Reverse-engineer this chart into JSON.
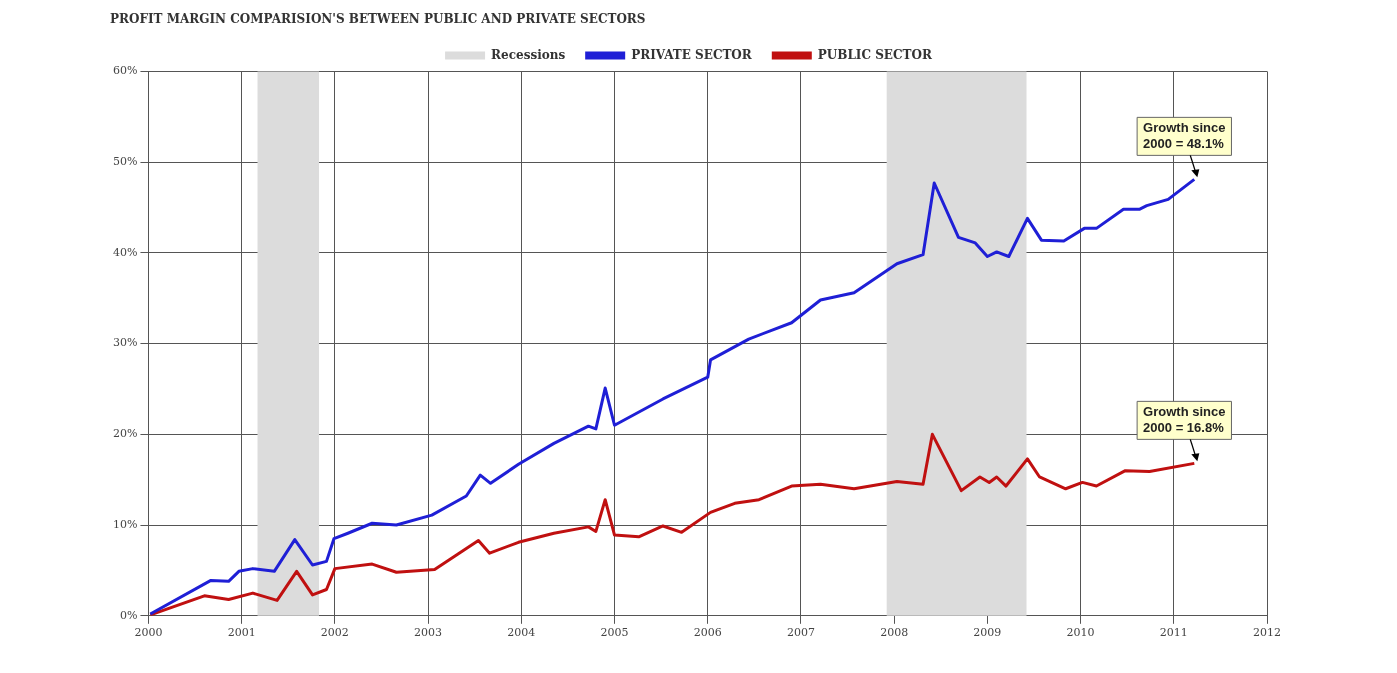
{
  "chart_data": {
    "type": "line",
    "title": "PROFIT MARGIN COMPARISION'S BETWEEN PUBLIC AND PRIVATE SECTORS",
    "series": [
      {
        "name": "PRIVATE SECTOR",
        "color": "#1f1fd6",
        "x": [
          2000.02,
          2000.67,
          2000.86,
          2000.97,
          2001.12,
          2001.35,
          2001.57,
          2001.76,
          2001.91,
          2001.99,
          2002.14,
          2002.4,
          2002.66,
          2003.04,
          2003.41,
          2003.56,
          2003.67,
          2003.97,
          2004.35,
          2004.72,
          2004.8,
          2004.9,
          2005.0,
          2005.52,
          2006.0,
          2006.03,
          2006.44,
          2006.9,
          2007.21,
          2007.57,
          2008.03,
          2008.31,
          2008.43,
          2008.69,
          2008.87,
          2009.0,
          2009.1,
          2009.23,
          2009.43,
          2009.58,
          2009.82,
          2010.04,
          2010.17,
          2010.46,
          2010.63,
          2010.71,
          2010.94,
          2011.22
        ],
        "values": [
          0.2,
          3.9,
          3.8,
          4.9,
          5.2,
          4.9,
          8.4,
          5.6,
          6.0,
          8.5,
          9.1,
          10.2,
          10.0,
          11.1,
          13.2,
          15.5,
          14.6,
          16.7,
          19.0,
          20.9,
          20.6,
          25.1,
          21.0,
          23.9,
          26.3,
          28.2,
          30.5,
          32.3,
          34.8,
          35.6,
          38.8,
          39.8,
          47.7,
          41.7,
          41.1,
          39.6,
          40.1,
          39.6,
          43.8,
          41.4,
          41.3,
          42.7,
          42.7,
          44.8,
          44.8,
          45.2,
          45.9,
          48.1
        ]
      },
      {
        "name": "PUBLIC SECTOR",
        "color": "#c01010",
        "x": [
          2000.02,
          2000.6,
          2000.86,
          2001.12,
          2001.38,
          2001.59,
          2001.76,
          2001.91,
          2002.0,
          2002.4,
          2002.66,
          2003.07,
          2003.54,
          2003.66,
          2003.97,
          2004.35,
          2004.72,
          2004.8,
          2004.9,
          2005.0,
          2005.26,
          2005.52,
          2005.72,
          2006.03,
          2006.29,
          2006.55,
          2006.9,
          2007.21,
          2007.57,
          2008.03,
          2008.31,
          2008.41,
          2008.72,
          2008.92,
          2009.02,
          2009.1,
          2009.2,
          2009.43,
          2009.56,
          2009.84,
          2010.02,
          2010.17,
          2010.48,
          2010.74,
          2011.22
        ],
        "values": [
          0.1,
          2.2,
          1.8,
          2.5,
          1.7,
          4.9,
          2.3,
          2.9,
          5.2,
          5.7,
          4.8,
          5.1,
          8.3,
          6.9,
          8.1,
          9.1,
          9.8,
          9.3,
          12.8,
          8.9,
          8.7,
          9.9,
          9.2,
          11.4,
          12.4,
          12.8,
          14.3,
          14.5,
          14.0,
          14.8,
          14.5,
          20.0,
          13.8,
          15.3,
          14.7,
          15.3,
          14.3,
          17.3,
          15.3,
          14.0,
          14.7,
          14.3,
          16.0,
          15.9,
          16.8
        ]
      }
    ],
    "xlim": [
      2000,
      2012
    ],
    "xticks": [
      2000,
      2001,
      2002,
      2003,
      2004,
      2005,
      2006,
      2007,
      2008,
      2009,
      2010,
      2011,
      2012
    ],
    "ylim": [
      0,
      60
    ],
    "yticks": [
      {
        "value": 0,
        "label": "0%"
      },
      {
        "value": 10,
        "label": "10%"
      },
      {
        "value": 20,
        "label": "20%"
      },
      {
        "value": 30,
        "label": "30%"
      },
      {
        "value": 40,
        "label": "40%"
      },
      {
        "value": 50,
        "label": "50%"
      },
      {
        "value": 60,
        "label": "60%"
      }
    ],
    "bands": [
      {
        "axis": "x",
        "from": 2001.17,
        "to": 2001.83,
        "label": "Recessions",
        "color": "#dcdcdc"
      },
      {
        "axis": "x",
        "from": 2007.92,
        "to": 2009.42,
        "color": "#dcdcdc"
      }
    ],
    "annotations": [
      {
        "text": "Growth since 2000 = 48.1%",
        "x": 2011.22,
        "y": 48.1
      },
      {
        "text": "Growth since 2000 = 16.8%",
        "x": 2011.22,
        "y": 16.8
      }
    ],
    "grid": true,
    "legend": "top",
    "marker": "none",
    "line_style": "solid"
  }
}
